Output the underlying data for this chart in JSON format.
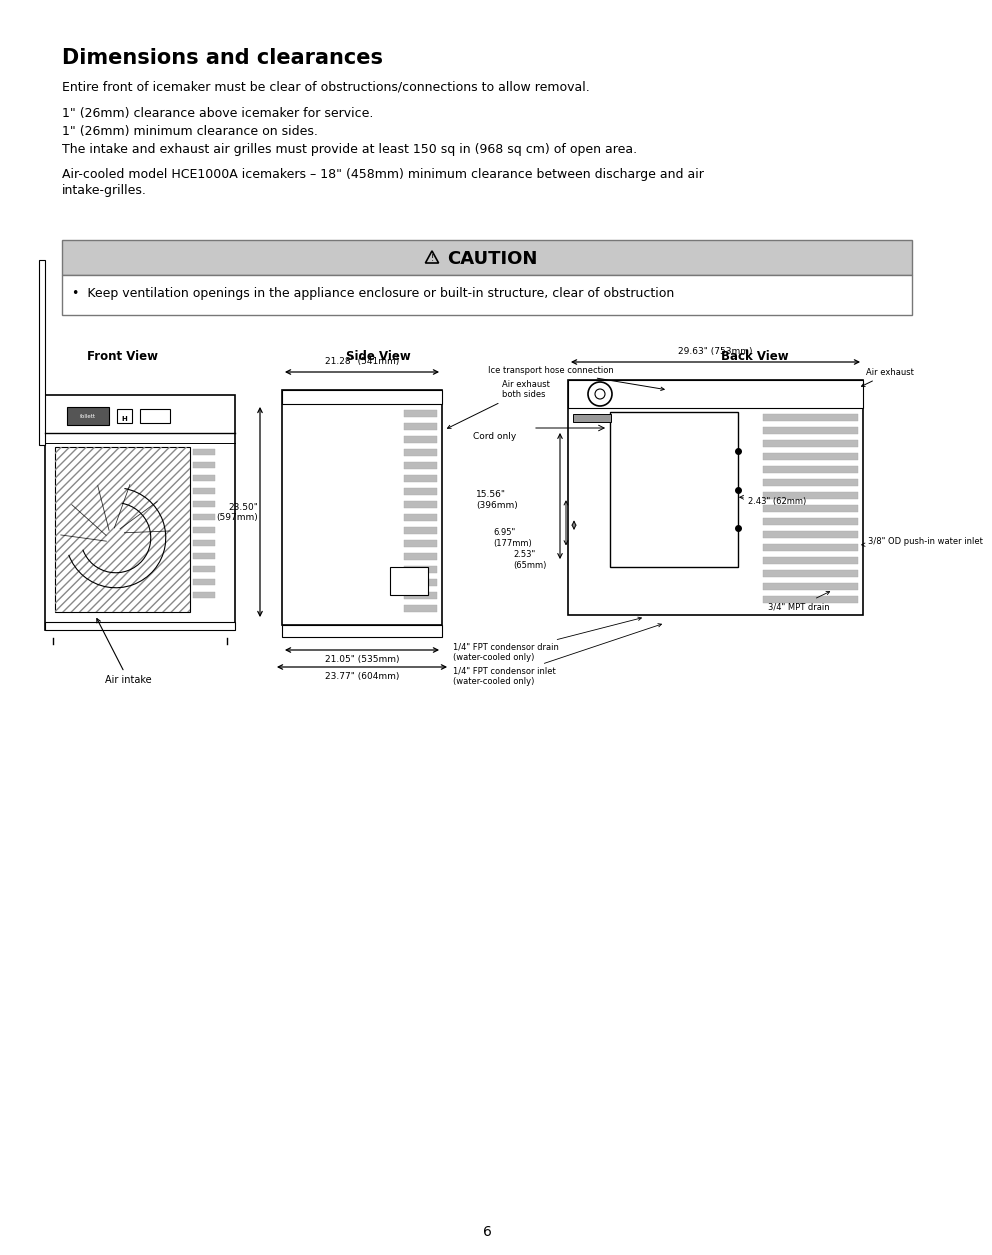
{
  "title": "Dimensions and clearances",
  "body_text": [
    "Entire front of icemaker must be clear of obstructions/connections to allow removal.",
    "1\" (26mm) clearance above icemaker for service.",
    "1\" (26mm) minimum clearance on sides.",
    "The intake and exhaust air grilles must provide at least 150 sq in (968 sq cm) of open area.",
    "Air-cooled model HCE1000A icemakers – 18\" (458mm) minimum clearance between discharge and air\nintake-grilles."
  ],
  "caution_title": "CAUTION",
  "caution_text": "•  Keep ventilation openings in the appliance enclosure or built-in structure, clear of obstruction",
  "caution_bg": "#c8c8c8",
  "caution_border": "#777777",
  "view_labels": [
    "Front View",
    "Side View",
    "Back View"
  ],
  "page_number": "6",
  "bg_color": "#ffffff",
  "text_color": "#000000",
  "air_intake_label": "Air intake",
  "side_dims": {
    "width_top": "21.28\" (541mm)",
    "height": "23.50\"\n(597mm)",
    "width_bot1": "21.05\" (535mm)",
    "width_bot2": "23.77\" (604mm)"
  },
  "back_dims": {
    "width": "29.63\" (753mm)",
    "air_exhaust": "Air exhaust",
    "ice_transport": "Ice transport hose connection",
    "air_exhaust_sides": "Air exhaust\nboth sides",
    "cord_only": "Cord only",
    "dim1": "15.56\"\n(396mm)",
    "dim2": "6.95\"\n(177mm)",
    "dim3": "2.53\"\n(65mm)",
    "dim4": "2.43\" (62mm)",
    "label1": "3/8\" OD push-in water inlet",
    "label2": "3/4\" MPT drain",
    "label3": "1/4\" FPT condensor drain\n(water-cooled only)",
    "label4": "1/4\" FPT condensor inlet\n(water-cooled only)"
  }
}
